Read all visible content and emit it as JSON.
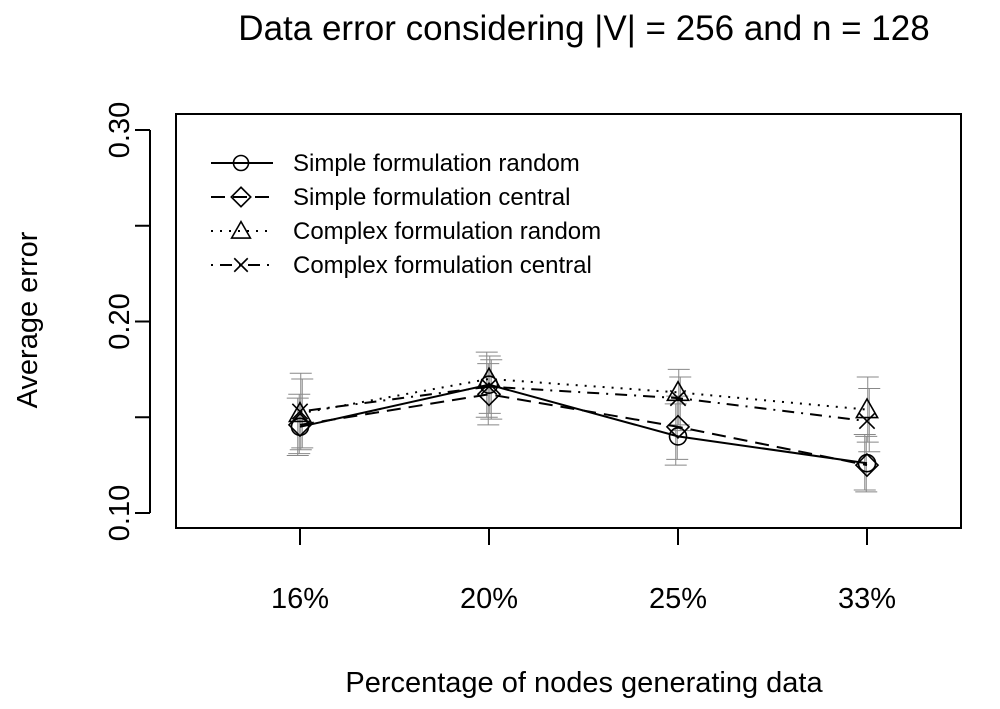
{
  "chart_data": {
    "type": "line",
    "title": "Data error considering |V| = 256 and n = 128",
    "xlabel": "Percentage of nodes generating data",
    "ylabel": "Average error",
    "categories": [
      "16%",
      "20%",
      "25%",
      "33%"
    ],
    "ylim": [
      0.1,
      0.3
    ],
    "yticks": [
      "0.10",
      "0.20",
      "0.30"
    ],
    "ytick_values": [
      0.1,
      0.15,
      0.2,
      0.25,
      0.3
    ],
    "legend_position": "top-left",
    "series": [
      {
        "name": "Simple formulation random",
        "marker": "circle",
        "line": "solid",
        "values": [
          0.145,
          0.167,
          0.14,
          0.126
        ],
        "error_low": [
          0.13,
          0.15,
          0.125,
          0.112
        ],
        "error_high": [
          0.16,
          0.184,
          0.157,
          0.141
        ]
      },
      {
        "name": "Simple formulation central",
        "marker": "diamond",
        "line": "dashed",
        "values": [
          0.146,
          0.162,
          0.145,
          0.125
        ],
        "error_low": [
          0.131,
          0.146,
          0.128,
          0.111
        ],
        "error_high": [
          0.162,
          0.178,
          0.161,
          0.14
        ]
      },
      {
        "name": "Complex formulation random",
        "marker": "triangle",
        "line": "dotted",
        "values": [
          0.152,
          0.17,
          0.163,
          0.154
        ],
        "error_low": [
          0.133,
          0.152,
          0.146,
          0.137
        ],
        "error_high": [
          0.173,
          0.182,
          0.175,
          0.171
        ]
      },
      {
        "name": "Complex formulation central",
        "marker": "x",
        "line": "dotdash",
        "values": [
          0.153,
          0.166,
          0.16,
          0.148
        ],
        "error_low": [
          0.134,
          0.149,
          0.143,
          0.132
        ],
        "error_high": [
          0.17,
          0.18,
          0.171,
          0.165
        ]
      }
    ]
  }
}
